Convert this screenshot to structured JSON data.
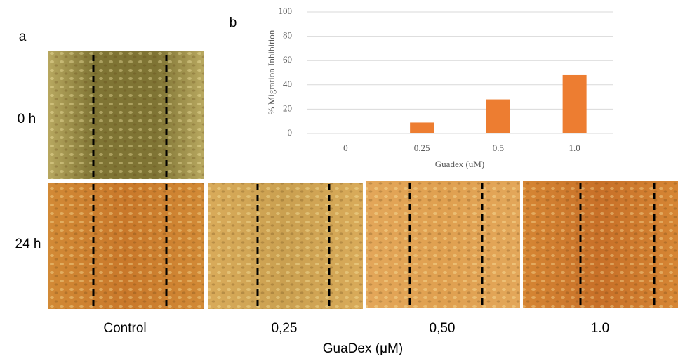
{
  "panel_a": {
    "label": "a",
    "rows": [
      "0 h",
      "24 h"
    ],
    "columns": [
      "Control",
      "0,25",
      "0,50",
      "1.0"
    ],
    "x_label": "GuaDex (μM)"
  },
  "panel_b": {
    "label": "b"
  },
  "chart_data": {
    "type": "bar",
    "x_label": "Guadex (uM)",
    "y_label": "% Migration  Inhibition",
    "categories": [
      "0",
      "0.25",
      "0.5",
      "1.0"
    ],
    "values": [
      0,
      9,
      28,
      48
    ],
    "color": "#ed7d31",
    "ylim": [
      0,
      100
    ],
    "yticks": [
      0,
      20,
      40,
      60,
      80,
      100
    ],
    "grid": true
  }
}
